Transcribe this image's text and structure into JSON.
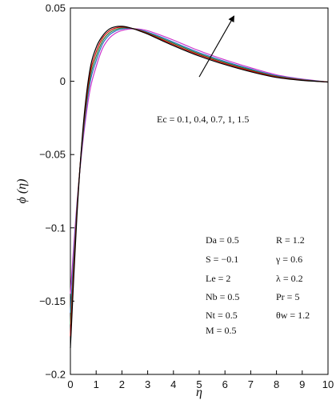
{
  "chart_data": {
    "type": "line",
    "xlabel": "η",
    "ylabel": "ϕ (η)",
    "xlim": [
      0,
      10
    ],
    "ylim": [
      -0.2,
      0.05
    ],
    "x_ticks": [
      0,
      1,
      2,
      3,
      4,
      5,
      6,
      7,
      8,
      9,
      10
    ],
    "y_ticks": [
      -0.2,
      -0.15,
      -0.1,
      -0.05,
      0,
      0.05
    ],
    "y_tick_labels": [
      "−0.2",
      "−0.15",
      "−0.1",
      "−0.05",
      "0",
      "0.05"
    ],
    "grid": false,
    "x": [
      0,
      0.25,
      0.5,
      0.75,
      1,
      1.25,
      1.5,
      1.75,
      2,
      2.25,
      2.5,
      2.75,
      3,
      3.5,
      4,
      4.5,
      5,
      6,
      7,
      8,
      9,
      10
    ],
    "series": [
      {
        "name": "Ec = 0.1",
        "color": "#000000",
        "values": [
          -0.182,
          -0.093,
          -0.03,
          0.007,
          0.023,
          0.031,
          0.0355,
          0.0372,
          0.0375,
          0.0368,
          0.0355,
          0.0339,
          0.0322,
          0.0282,
          0.0243,
          0.0206,
          0.0172,
          0.0114,
          0.0065,
          0.0026,
          0.0006,
          -0.0005
        ]
      },
      {
        "name": "Ec = 0.4",
        "color": "#d40000",
        "values": [
          -0.174,
          -0.09,
          -0.032,
          0.004,
          0.02,
          0.0295,
          0.0342,
          0.0363,
          0.037,
          0.0366,
          0.0356,
          0.0342,
          0.0326,
          0.0289,
          0.0251,
          0.0214,
          0.018,
          0.0121,
          0.0071,
          0.003,
          0.0008,
          -0.0005
        ]
      },
      {
        "name": "Ec = 0.7",
        "color": "#2e7d32",
        "values": [
          -0.166,
          -0.088,
          -0.034,
          0.001,
          0.017,
          0.0275,
          0.0328,
          0.0353,
          0.0364,
          0.0364,
          0.0357,
          0.0345,
          0.033,
          0.0296,
          0.0259,
          0.0222,
          0.0187,
          0.0128,
          0.0077,
          0.0034,
          0.001,
          -0.0005
        ]
      },
      {
        "name": "Ec = 1",
        "color": "#1f6fbf",
        "values": [
          -0.158,
          -0.086,
          -0.036,
          -0.002,
          0.014,
          0.0255,
          0.0314,
          0.0343,
          0.0357,
          0.0361,
          0.0357,
          0.0348,
          0.0335,
          0.0303,
          0.0267,
          0.023,
          0.0195,
          0.0135,
          0.0083,
          0.0038,
          0.0012,
          -0.0005
        ]
      },
      {
        "name": "Ec = 1.5",
        "color": "#cc33cc",
        "values": [
          -0.145,
          -0.084,
          -0.039,
          -0.007,
          0.01,
          0.0225,
          0.0292,
          0.0328,
          0.0347,
          0.0356,
          0.0358,
          0.0354,
          0.0345,
          0.0315,
          0.0281,
          0.0244,
          0.0208,
          0.0146,
          0.0092,
          0.0044,
          0.0015,
          -0.0005
        ]
      }
    ],
    "annotations": {
      "arrow_label": "Ec = 0.1, 0.4, 0.7, 1, 1.5",
      "arrow": {
        "from": [
          5.0,
          0.003
        ],
        "to": [
          6.35,
          0.0445
        ]
      },
      "params_left": [
        "Da = 0.5",
        "S = −0.1",
        "Le = 2",
        "Nb = 0.5",
        "Nt = 0.5",
        "M = 0.5"
      ],
      "params_right": [
        "R = 1.2",
        "γ = 0.6",
        "λ = 0.2",
        "Pr = 5",
        "θw = 1.2"
      ]
    }
  }
}
